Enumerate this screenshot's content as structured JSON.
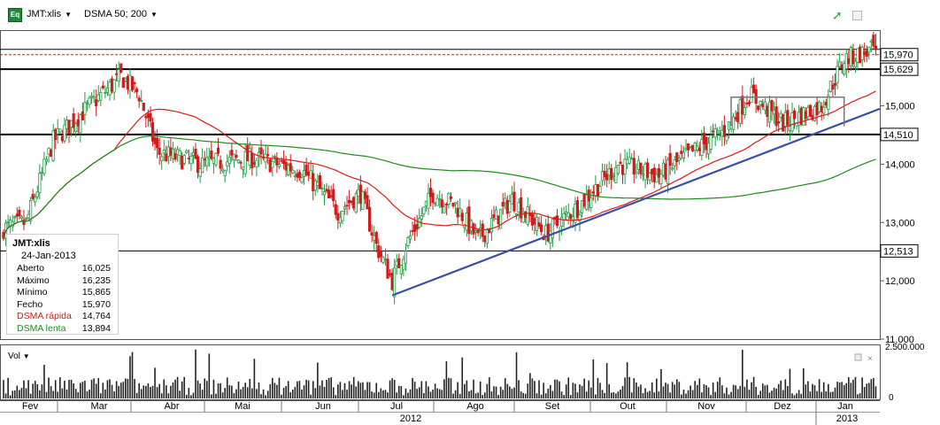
{
  "toolbar": {
    "logo_text": "Eq",
    "symbol_label": "JMT:xlis",
    "indicator_label": "DSMA 50; 200"
  },
  "colors": {
    "up": "#1f9b45",
    "down": "#d11a1a",
    "fast_ma": "#e01818",
    "slow_ma": "#1e8a1e",
    "trendline": "#3a4fa8",
    "grid": "#000000"
  },
  "legend": {
    "title": "JMT:xlis",
    "date": "24-Jan-2013",
    "rows": [
      {
        "label": "Aberto",
        "value": "16,025"
      },
      {
        "label": "Máximo",
        "value": "16,235"
      },
      {
        "label": "Mínimo",
        "value": "15,865"
      },
      {
        "label": "Fecho",
        "value": "15,970"
      },
      {
        "label": "DSMA rápida",
        "value": "14,764",
        "color": "#e01818"
      },
      {
        "label": "DSMA lenta",
        "value": "13,894",
        "color": "#1e8a1e"
      }
    ]
  },
  "volume_panel": {
    "label": "Vol",
    "ticks": [
      "2.500.000",
      "0"
    ]
  },
  "chart_data": {
    "type": "candlestick",
    "y_ticks": [
      "15,000",
      "14,000",
      "13,000",
      "12,000",
      "11,000"
    ],
    "price_labels": [
      "15,970",
      "15,629",
      "14,510",
      "12,513"
    ],
    "ylim": [
      11.0,
      16.3
    ],
    "x_months": [
      "Fev",
      "Mar",
      "Abr",
      "Mai",
      "Jun",
      "Jul",
      "Ago",
      "Set",
      "Out",
      "Nov",
      "Dez",
      "Jan"
    ],
    "x_years": [
      "2012",
      "2013"
    ],
    "horizontal_levels": [
      15.97,
      15.629,
      14.51,
      12.513
    ],
    "close_anchors": [
      [
        0,
        12.9
      ],
      [
        10,
        13.0
      ],
      [
        22,
        14.4
      ],
      [
        38,
        15.0
      ],
      [
        52,
        15.5
      ],
      [
        60,
        15.2
      ],
      [
        68,
        14.2
      ],
      [
        88,
        14.0
      ],
      [
        110,
        14.1
      ],
      [
        132,
        13.9
      ],
      [
        148,
        13.2
      ],
      [
        158,
        13.5
      ],
      [
        165,
        12.6
      ],
      [
        172,
        12.0
      ],
      [
        178,
        12.6
      ],
      [
        190,
        13.5
      ],
      [
        200,
        13.3
      ],
      [
        210,
        12.7
      ],
      [
        225,
        13.4
      ],
      [
        240,
        12.8
      ],
      [
        255,
        13.3
      ],
      [
        272,
        14.0
      ],
      [
        290,
        13.8
      ],
      [
        312,
        14.4
      ],
      [
        320,
        14.6
      ],
      [
        330,
        15.2
      ],
      [
        345,
        14.7
      ],
      [
        362,
        15.0
      ],
      [
        372,
        15.8
      ],
      [
        380,
        15.9
      ],
      [
        386,
        15.97
      ]
    ],
    "candles": 387
  }
}
